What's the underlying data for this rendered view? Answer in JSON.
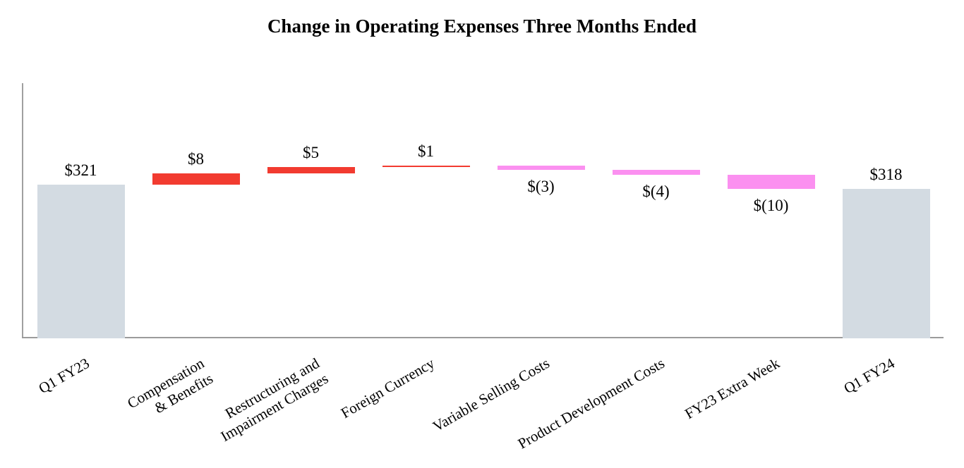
{
  "chart_data": {
    "type": "bar",
    "subtype": "waterfall",
    "title": "Change in Operating Expenses Three Months Ended",
    "categories": [
      "Q1 FY23",
      "Compensation\n& Benefits",
      "Restructuring and\nImpairment Charges",
      "Foreign Currency",
      "Variable Selling Costs",
      "Product Development Costs",
      "FY23 Extra Week",
      "Q1 FY24"
    ],
    "values": [
      321,
      8,
      5,
      1,
      -3,
      -4,
      -10,
      318
    ],
    "bar_roles": [
      "total",
      "increase",
      "increase",
      "increase",
      "decrease",
      "decrease",
      "decrease",
      "total"
    ],
    "value_labels": [
      "$321",
      "$8",
      "$5",
      "$1",
      "$(3)",
      "$(4)",
      "$(10)",
      "$318"
    ],
    "label_position": [
      "above",
      "above",
      "above",
      "above",
      "below",
      "below",
      "below",
      "above"
    ],
    "cumulative_after": [
      321,
      329,
      334,
      335,
      332,
      328,
      318,
      318
    ],
    "colors": {
      "total": "#d3dbe2",
      "increase": "#f23b30",
      "decrease": "#fb90f0",
      "axis": "#a0a0a0",
      "text": "#000000"
    },
    "ylim": [
      209,
      395
    ],
    "grid": false,
    "legend": false,
    "x_tick_rotation_deg": -30,
    "xlabel": "",
    "ylabel": ""
  }
}
